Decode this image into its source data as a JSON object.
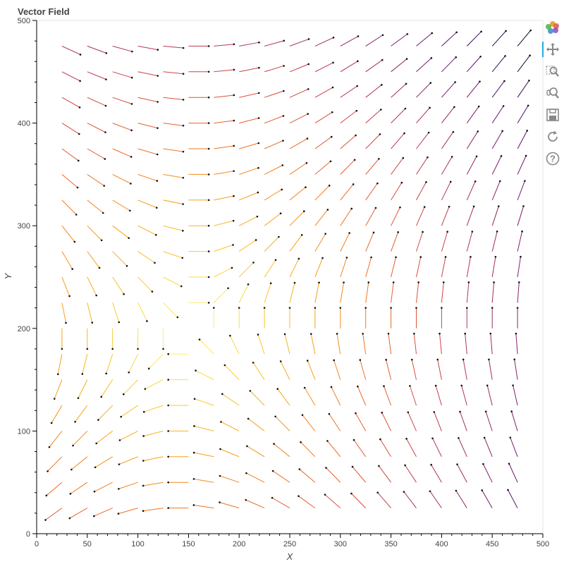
{
  "title": "Vector Field",
  "toolbar": {
    "tools": [
      {
        "name": "bokeh-logo-icon"
      },
      {
        "name": "pan-icon"
      },
      {
        "name": "box-zoom-icon"
      },
      {
        "name": "wheel-zoom-icon"
      },
      {
        "name": "save-icon"
      },
      {
        "name": "reset-icon"
      },
      {
        "name": "help-icon"
      }
    ]
  },
  "chart_data": {
    "type": "quiver",
    "title": "Vector Field",
    "xlabel": "X",
    "ylabel": "Y",
    "xlim": [
      0,
      500
    ],
    "ylim": [
      0,
      500
    ],
    "xticks": [
      0,
      50,
      100,
      150,
      200,
      250,
      300,
      350,
      400,
      450,
      500
    ],
    "yticks": [
      0,
      100,
      200,
      300,
      400,
      500
    ],
    "grid": false,
    "legend": "none",
    "colormap": "inferno (color by magnitude; light yellow = low, dark purple = high)",
    "grid_points": {
      "x": [
        25,
        50,
        75,
        100,
        125,
        150,
        175,
        200,
        225,
        250,
        275,
        300,
        325,
        350,
        375,
        400,
        425,
        450,
        475
      ],
      "y": [
        25,
        50,
        75,
        100,
        125,
        150,
        175,
        200,
        225,
        250,
        275,
        300,
        325,
        350,
        375,
        400,
        425,
        450,
        475
      ]
    },
    "field": "(u, v) = (x - 150, y - 200) rotated, arrows of fixed length pointing away from the saddle near (150, 200)"
  }
}
